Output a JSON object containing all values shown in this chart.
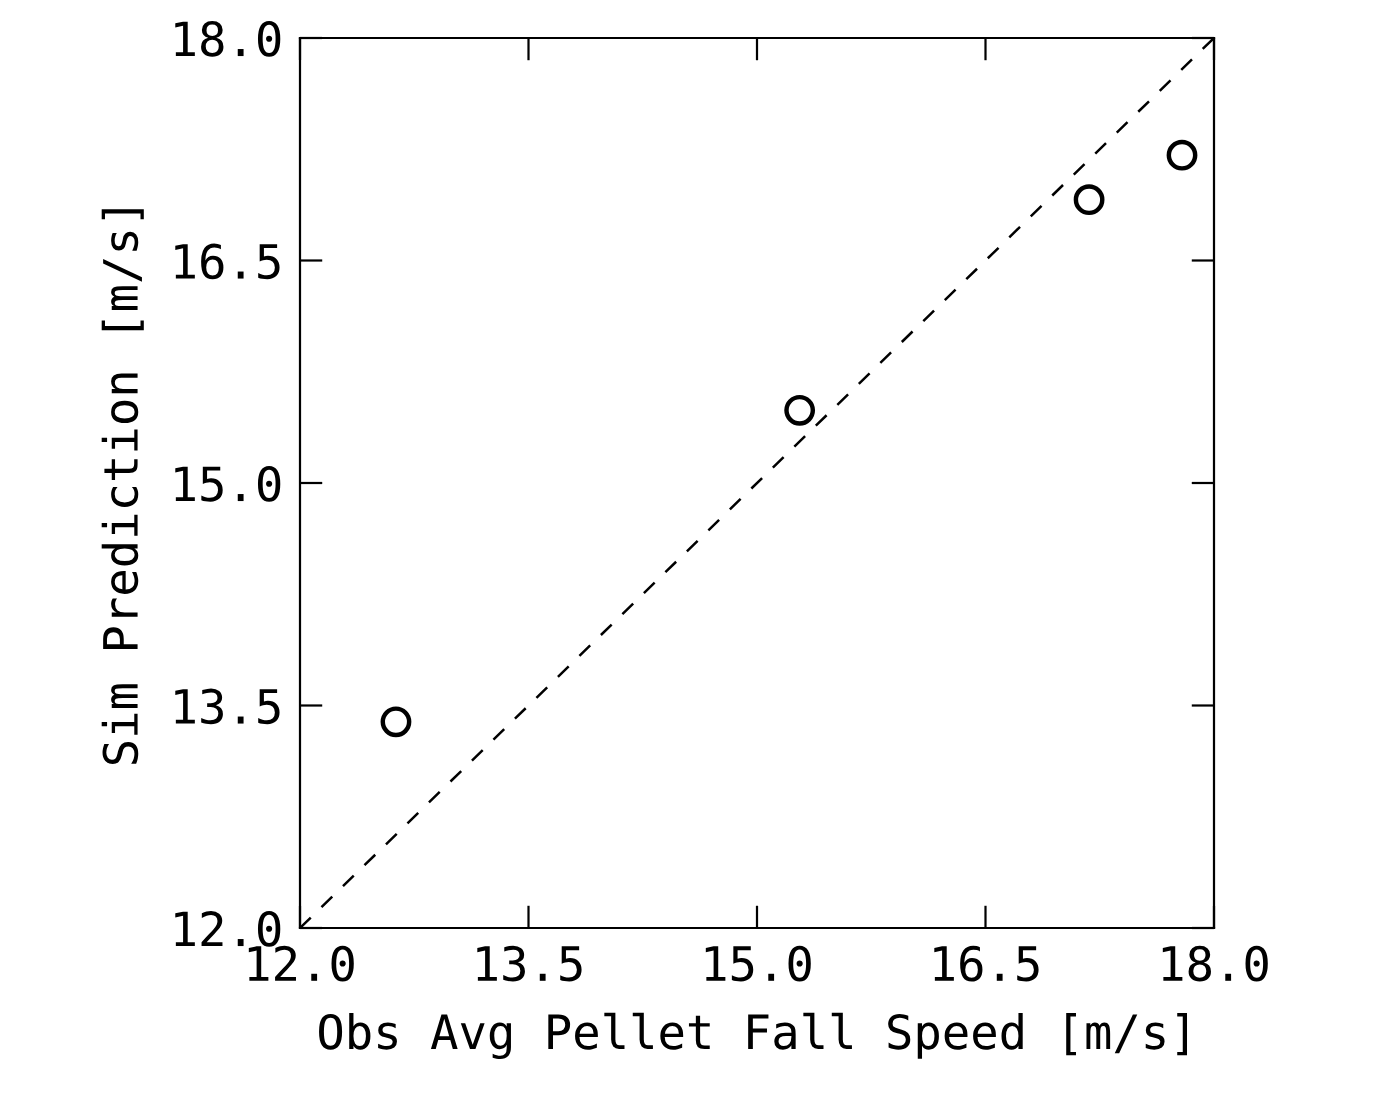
{
  "chart_data": {
    "type": "scatter",
    "xlabel": "Obs Avg Pellet Fall Speed [m/s]",
    "ylabel": "Sim Prediction [m/s]",
    "xlim": [
      12.0,
      18.0
    ],
    "ylim": [
      12.0,
      18.0
    ],
    "xticks": [
      {
        "value": 12.0,
        "label": "12.0"
      },
      {
        "value": 13.5,
        "label": "13.5"
      },
      {
        "value": 15.0,
        "label": "15.0"
      },
      {
        "value": 16.5,
        "label": "16.5"
      },
      {
        "value": 18.0,
        "label": "18.0"
      }
    ],
    "yticks": [
      {
        "value": 12.0,
        "label": "12.0"
      },
      {
        "value": 13.5,
        "label": "13.5"
      },
      {
        "value": 15.0,
        "label": "15.0"
      },
      {
        "value": 16.5,
        "label": "16.5"
      },
      {
        "value": 18.0,
        "label": "18.0"
      }
    ],
    "grid": false,
    "legend": false,
    "series": [
      {
        "color": "#000000",
        "marker": "circle",
        "x": [
          12.63,
          15.28,
          17.18,
          17.79
        ],
        "values": [
          13.39,
          15.49,
          16.91,
          17.21
        ]
      },
      {
        "type": "line",
        "color": "#000000",
        "line_style": "dashed",
        "marker": "none",
        "x": [
          12.0,
          18.0
        ],
        "values": [
          12.0,
          18.0
        ]
      }
    ]
  }
}
